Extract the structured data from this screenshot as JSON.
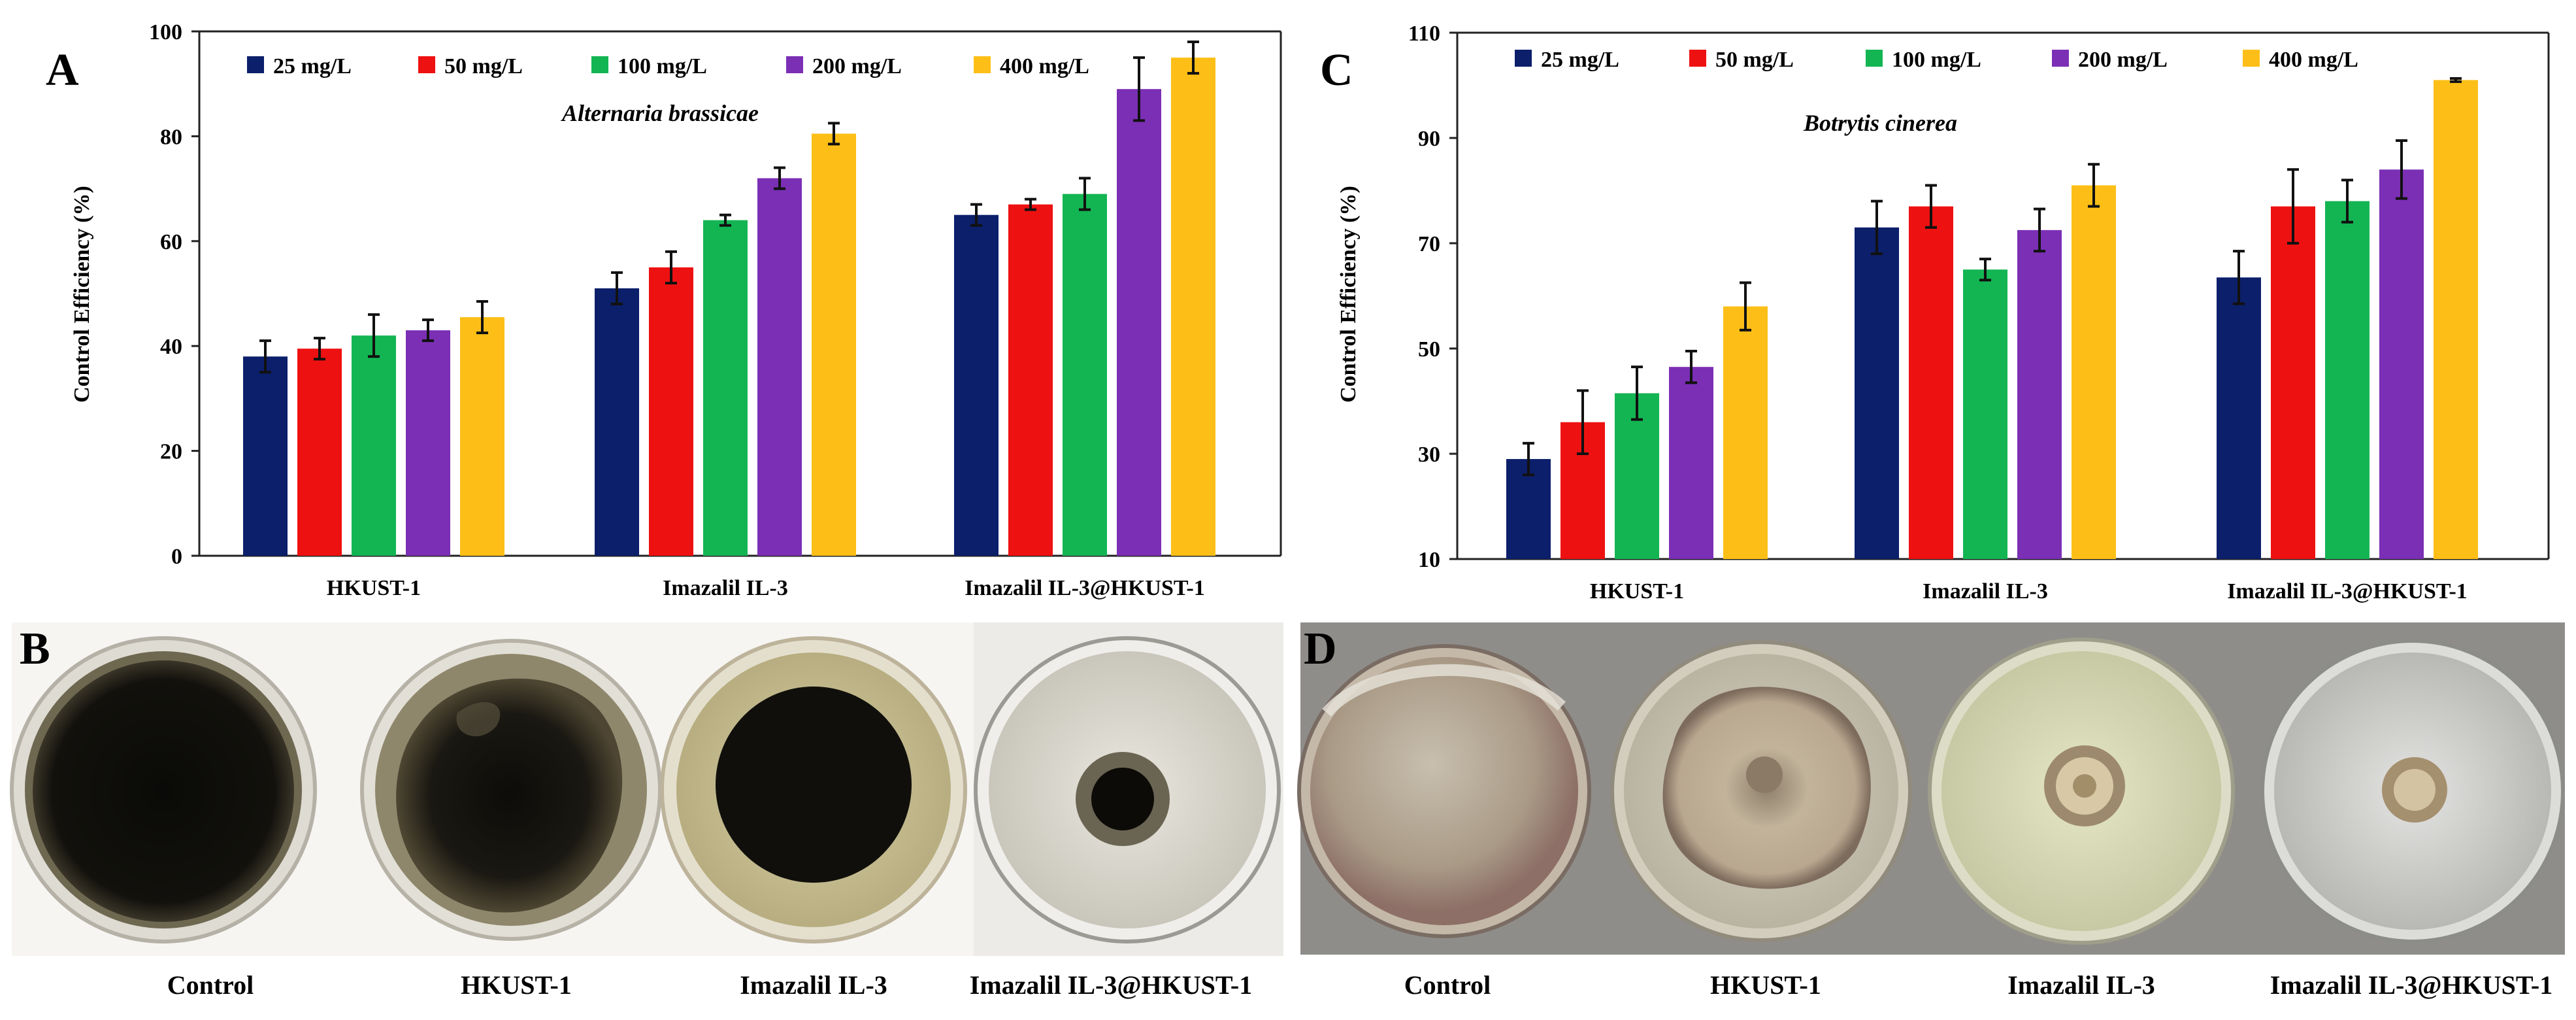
{
  "panel_labels": {
    "a": "A",
    "b": "B",
    "c": "C",
    "d": "D"
  },
  "series_colors": [
    "#0c1f6b",
    "#ee1111",
    "#13b552",
    "#7b2fb5",
    "#fdbf17"
  ],
  "chart_data": [
    {
      "panel": "A",
      "type": "bar",
      "title": "",
      "annotation": "Alternaria brassicae",
      "xlabel": "",
      "ylabel": "Control Efficiency (%)",
      "ylim": [
        0,
        100
      ],
      "yticks": [
        0,
        20,
        40,
        60,
        80,
        100
      ],
      "grid": false,
      "legend_position": "top-left",
      "categories": [
        "HKUST-1",
        "Imazalil IL-3",
        "Imazalil IL-3@HKUST-1"
      ],
      "series": [
        {
          "name": "25 mg/L",
          "values": [
            38,
            51,
            65
          ],
          "errors": [
            3,
            3,
            2
          ]
        },
        {
          "name": "50 mg/L",
          "values": [
            39.5,
            55,
            67
          ],
          "errors": [
            2,
            3,
            1
          ]
        },
        {
          "name": "100 mg/L",
          "values": [
            42,
            64,
            69
          ],
          "errors": [
            4,
            1,
            3
          ]
        },
        {
          "name": "200 mg/L",
          "values": [
            43,
            72,
            89
          ],
          "errors": [
            2,
            2,
            6
          ]
        },
        {
          "name": "400 mg/L",
          "values": [
            45.5,
            80.5,
            95
          ],
          "errors": [
            3,
            2,
            3
          ]
        }
      ]
    },
    {
      "panel": "C",
      "type": "bar",
      "title": "",
      "annotation": "Botrytis cinerea",
      "xlabel": "",
      "ylabel": "Control Efficiency (%)",
      "ylim": [
        10,
        110
      ],
      "yticks": [
        10,
        30,
        50,
        70,
        90,
        110
      ],
      "grid": false,
      "legend_position": "top-left",
      "categories": [
        "HKUST-1",
        "Imazalil IL-3",
        "Imazalil IL-3@HKUST-1"
      ],
      "series": [
        {
          "name": "25 mg/L",
          "values": [
            29,
            73,
            63.5
          ],
          "errors": [
            3,
            5,
            5
          ]
        },
        {
          "name": "50 mg/L",
          "values": [
            36,
            77,
            77
          ],
          "errors": [
            6,
            4,
            7
          ]
        },
        {
          "name": "100 mg/L",
          "values": [
            41.5,
            65,
            78
          ],
          "errors": [
            5,
            2,
            4
          ]
        },
        {
          "name": "200 mg/L",
          "values": [
            46.5,
            72.5,
            84
          ],
          "errors": [
            3,
            4,
            5.5
          ]
        },
        {
          "name": "400 mg/L",
          "values": [
            58,
            81,
            101
          ],
          "errors": [
            4.5,
            4,
            0.3
          ]
        }
      ]
    }
  ],
  "photos": {
    "b_captions": [
      "Control",
      "HKUST-1",
      "Imazalil IL-3",
      "Imazalil IL-3@HKUST-1"
    ],
    "d_captions": [
      "Control",
      "HKUST-1",
      "Imazalil IL-3",
      "Imazalil IL-3@HKUST-1"
    ]
  }
}
